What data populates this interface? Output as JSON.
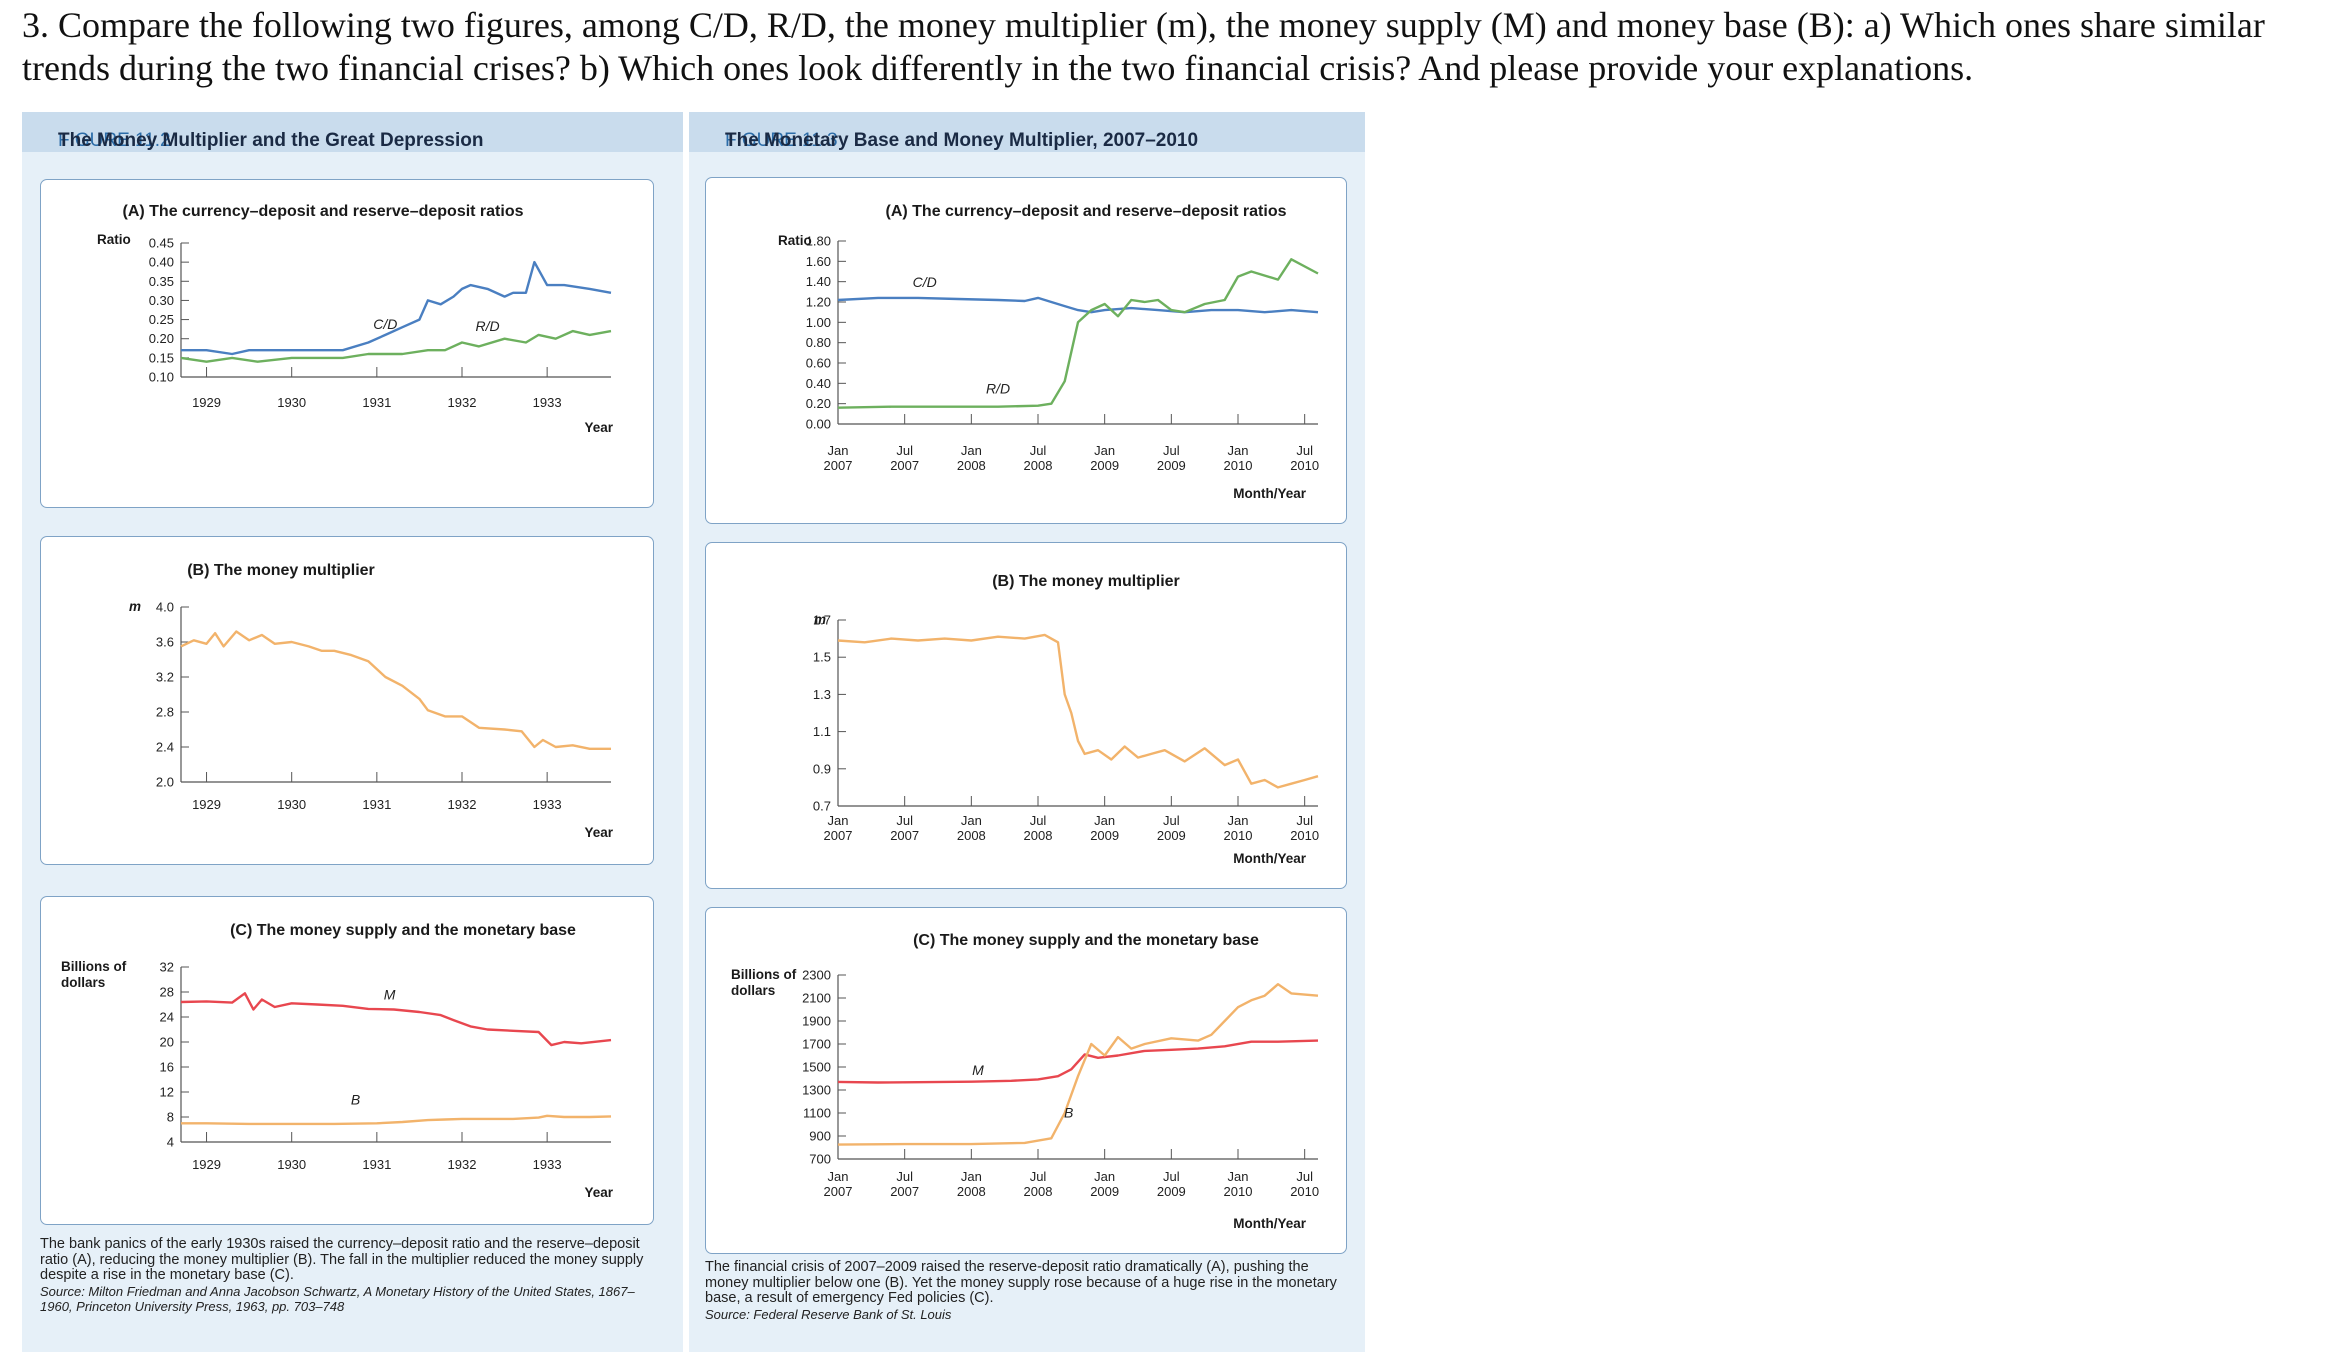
{
  "question": {
    "text": "3. Compare the following two figures, among C/D, R/D, the money multiplier (m), the money supply (M) and money base (B): a) Which ones share similar trends during the two financial crises? b) Which ones look differently in the two financial crisis? And please provide your explanations."
  },
  "figures": [
    {
      "number": "FIGURE 11.2",
      "title": "The Money Multiplier and the Great Depression",
      "caption": "The bank panics of the early 1930s raised the currency–deposit ratio and the reserve–deposit ratio (A), reducing the money multiplier (B). The fall in the multiplier reduced the money supply despite a rise in the monetary base (C).",
      "source": "Source: Milton Friedman and Anna Jacobson Schwartz, A Monetary History of the United States, 1867–1960, Princeton University Press, 1963, pp. 703–748"
    },
    {
      "number": "FIGURE 11.3",
      "title": "The Monetary Base and Money Multiplier, 2007–2010",
      "caption": "The financial crisis of 2007–2009 raised the reserve-deposit ratio dramatically (A), pushing the money multiplier below one (B). Yet the money supply rose because of a huge rise in the monetary base, a result of emergency Fed policies (C).",
      "source": "Source: Federal Reserve Bank of St. Louis"
    }
  ],
  "colors": {
    "blue": "#4a7fc1",
    "green": "#6db05e",
    "orange": "#f2b36b",
    "red": "#e8474f"
  },
  "chart_data": [
    {
      "id": "f1a",
      "type": "line",
      "figure": 1,
      "title": "(A) The currency–deposit and reserve–deposit ratios",
      "ylabel": "Ratio",
      "xlabel": "Year",
      "ylim": [
        0.1,
        0.45
      ],
      "yticks": [
        0.1,
        0.15,
        0.2,
        0.25,
        0.3,
        0.35,
        0.4,
        0.45
      ],
      "ytick_labels": [
        "0.10",
        "0.15",
        "0.20",
        "0.25",
        "0.30",
        "0.35",
        "0.40",
        "0.45"
      ],
      "xlim": [
        1928.7,
        1933.75
      ],
      "xticks": [
        1929,
        1930,
        1931,
        1932,
        1933
      ],
      "xtick_labels": [
        "1929",
        "1930",
        "1931",
        "1932",
        "1933"
      ],
      "series": [
        {
          "name": "C/D",
          "color": "blue",
          "x": [
            1928.7,
            1929,
            1929.3,
            1929.5,
            1929.8,
            1930,
            1930.3,
            1930.6,
            1930.9,
            1931.1,
            1931.3,
            1931.5,
            1931.6,
            1931.75,
            1931.9,
            1932,
            1932.1,
            1932.3,
            1932.5,
            1932.6,
            1932.75,
            1932.85,
            1933,
            1933.2,
            1933.5,
            1933.75
          ],
          "y": [
            0.17,
            0.17,
            0.16,
            0.17,
            0.17,
            0.17,
            0.17,
            0.17,
            0.19,
            0.21,
            0.23,
            0.25,
            0.3,
            0.29,
            0.31,
            0.33,
            0.34,
            0.33,
            0.31,
            0.32,
            0.32,
            0.4,
            0.34,
            0.34,
            0.33,
            0.32
          ]
        },
        {
          "name": "R/D",
          "color": "green",
          "x": [
            1928.7,
            1929,
            1929.3,
            1929.6,
            1930,
            1930.3,
            1930.6,
            1930.9,
            1931.1,
            1931.3,
            1931.6,
            1931.8,
            1932,
            1932.2,
            1932.5,
            1932.75,
            1932.9,
            1933.1,
            1933.3,
            1933.5,
            1933.75
          ],
          "y": [
            0.15,
            0.14,
            0.15,
            0.14,
            0.15,
            0.15,
            0.15,
            0.16,
            0.16,
            0.16,
            0.17,
            0.17,
            0.19,
            0.18,
            0.2,
            0.19,
            0.21,
            0.2,
            0.22,
            0.21,
            0.22
          ]
        }
      ],
      "annotations": [
        {
          "text": "C/D",
          "x": 1931.1,
          "y": 0.225
        },
        {
          "text": "R/D",
          "x": 1932.3,
          "y": 0.22
        }
      ]
    },
    {
      "id": "f1b",
      "type": "line",
      "figure": 1,
      "title": "(B) The money multiplier",
      "ylabel": "m",
      "xlabel": "Year",
      "ylim": [
        2.0,
        4.0
      ],
      "yticks": [
        2.0,
        2.4,
        2.8,
        3.2,
        3.6,
        4.0
      ],
      "ytick_labels": [
        "2.0",
        "2.4",
        "2.8",
        "3.2",
        "3.6",
        "4.0"
      ],
      "xlim": [
        1928.7,
        1933.75
      ],
      "xticks": [
        1929,
        1930,
        1931,
        1932,
        1933
      ],
      "xtick_labels": [
        "1929",
        "1930",
        "1931",
        "1932",
        "1933"
      ],
      "series": [
        {
          "name": "m",
          "color": "orange",
          "x": [
            1928.7,
            1928.85,
            1929,
            1929.1,
            1929.2,
            1929.35,
            1929.5,
            1929.65,
            1929.8,
            1930,
            1930.2,
            1930.35,
            1930.5,
            1930.7,
            1930.9,
            1931.1,
            1931.3,
            1931.5,
            1931.6,
            1931.8,
            1932,
            1932.2,
            1932.5,
            1932.7,
            1932.85,
            1932.95,
            1933.1,
            1933.3,
            1933.5,
            1933.75
          ],
          "y": [
            3.55,
            3.62,
            3.58,
            3.7,
            3.55,
            3.72,
            3.62,
            3.68,
            3.58,
            3.6,
            3.55,
            3.5,
            3.5,
            3.45,
            3.38,
            3.2,
            3.1,
            2.95,
            2.82,
            2.75,
            2.75,
            2.62,
            2.6,
            2.58,
            2.4,
            2.48,
            2.4,
            2.42,
            2.38,
            2.38
          ]
        }
      ]
    },
    {
      "id": "f1c",
      "type": "line",
      "figure": 1,
      "title": "(C) The money supply and the monetary base",
      "ylabel": "Billions of dollars",
      "xlabel": "Year",
      "ylim": [
        4,
        32
      ],
      "yticks": [
        4,
        8,
        12,
        16,
        20,
        24,
        28,
        32
      ],
      "ytick_labels": [
        "4",
        "8",
        "12",
        "16",
        "20",
        "24",
        "28",
        "32"
      ],
      "xlim": [
        1928.7,
        1933.75
      ],
      "xticks": [
        1929,
        1930,
        1931,
        1932,
        1933
      ],
      "xtick_labels": [
        "1929",
        "1930",
        "1931",
        "1932",
        "1933"
      ],
      "series": [
        {
          "name": "M",
          "color": "red",
          "x": [
            1928.7,
            1929,
            1929.3,
            1929.45,
            1929.55,
            1929.65,
            1929.8,
            1930,
            1930.3,
            1930.6,
            1930.9,
            1931.2,
            1931.5,
            1931.75,
            1931.9,
            1932.1,
            1932.3,
            1932.6,
            1932.9,
            1933.05,
            1933.2,
            1933.4,
            1933.75
          ],
          "y": [
            26.4,
            26.5,
            26.3,
            27.8,
            25.2,
            26.8,
            25.6,
            26.2,
            26.0,
            25.8,
            25.3,
            25.2,
            24.8,
            24.3,
            23.5,
            22.5,
            22.0,
            21.8,
            21.6,
            19.5,
            20.0,
            19.8,
            20.3
          ]
        },
        {
          "name": "B",
          "color": "orange",
          "x": [
            1928.7,
            1929,
            1929.5,
            1930,
            1930.5,
            1931,
            1931.3,
            1931.6,
            1931.8,
            1932,
            1932.3,
            1932.6,
            1932.9,
            1933.0,
            1933.2,
            1933.5,
            1933.75
          ],
          "y": [
            7.0,
            7.0,
            6.9,
            6.9,
            6.9,
            7.0,
            7.2,
            7.5,
            7.6,
            7.7,
            7.7,
            7.7,
            7.9,
            8.2,
            8.0,
            8.0,
            8.1
          ]
        }
      ],
      "annotations": [
        {
          "text": "M",
          "x": 1931.15,
          "y": 26.8
        },
        {
          "text": "B",
          "x": 1930.75,
          "y": 10.0
        }
      ]
    },
    {
      "id": "f2a",
      "type": "line",
      "figure": 2,
      "title": "(A) The currency–deposit and reserve–deposit ratios",
      "ylabel": "Ratio",
      "xlabel": "Month/Year",
      "ylim": [
        0.0,
        1.8
      ],
      "yticks": [
        0.0,
        0.2,
        0.4,
        0.6,
        0.8,
        1.0,
        1.2,
        1.4,
        1.6,
        1.8
      ],
      "ytick_labels": [
        "0.00",
        "0.20",
        "0.40",
        "0.60",
        "0.80",
        "1.00",
        "1.20",
        "1.40",
        "1.60",
        "1.80"
      ],
      "xlim": [
        2007.0,
        2010.6
      ],
      "xticks": [
        2007.0,
        2007.5,
        2008.0,
        2008.5,
        2009.0,
        2009.5,
        2010.0,
        2010.5
      ],
      "xtick_labels": [
        "Jan\n2007",
        "Jul\n2007",
        "Jan\n2008",
        "Jul\n2008",
        "Jan\n2009",
        "Jul\n2009",
        "Jan\n2010",
        "Jul\n2010"
      ],
      "series": [
        {
          "name": "C/D",
          "color": "blue",
          "x": [
            2007.0,
            2007.3,
            2007.6,
            2007.9,
            2008.2,
            2008.4,
            2008.5,
            2008.6,
            2008.7,
            2008.8,
            2008.9,
            2009.0,
            2009.2,
            2009.4,
            2009.6,
            2009.8,
            2010.0,
            2010.2,
            2010.4,
            2010.6
          ],
          "y": [
            1.22,
            1.24,
            1.24,
            1.23,
            1.22,
            1.21,
            1.24,
            1.2,
            1.16,
            1.12,
            1.1,
            1.12,
            1.14,
            1.12,
            1.1,
            1.12,
            1.12,
            1.1,
            1.12,
            1.1
          ]
        },
        {
          "name": "R/D",
          "color": "green",
          "x": [
            2007.0,
            2007.4,
            2007.8,
            2008.2,
            2008.5,
            2008.6,
            2008.7,
            2008.8,
            2008.9,
            2009.0,
            2009.1,
            2009.2,
            2009.3,
            2009.4,
            2009.5,
            2009.6,
            2009.75,
            2009.9,
            2010.0,
            2010.1,
            2010.3,
            2010.4,
            2010.6
          ],
          "y": [
            0.16,
            0.17,
            0.17,
            0.17,
            0.18,
            0.2,
            0.42,
            1.0,
            1.12,
            1.18,
            1.06,
            1.22,
            1.2,
            1.22,
            1.12,
            1.1,
            1.18,
            1.22,
            1.45,
            1.5,
            1.42,
            1.62,
            1.48
          ]
        }
      ],
      "annotations": [
        {
          "text": "C/D",
          "x": 2007.65,
          "y": 1.35
        },
        {
          "text": "R/D",
          "x": 2008.2,
          "y": 0.3
        }
      ]
    },
    {
      "id": "f2b",
      "type": "line",
      "figure": 2,
      "title": "(B) The money multiplier",
      "ylabel": "m",
      "xlabel": "Month/Year",
      "ylim": [
        0.7,
        1.7
      ],
      "yticks": [
        0.7,
        0.9,
        1.1,
        1.3,
        1.5,
        1.7
      ],
      "ytick_labels": [
        "0.7",
        "0.9",
        "1.1",
        "1.3",
        "1.5",
        "1.7"
      ],
      "xlim": [
        2007.0,
        2010.6
      ],
      "xticks": [
        2007.0,
        2007.5,
        2008.0,
        2008.5,
        2009.0,
        2009.5,
        2010.0,
        2010.5
      ],
      "xtick_labels": [
        "Jan\n2007",
        "Jul\n2007",
        "Jan\n2008",
        "Jul\n2008",
        "Jan\n2009",
        "Jul\n2009",
        "Jan\n2010",
        "Jul\n2010"
      ],
      "series": [
        {
          "name": "m",
          "color": "orange",
          "x": [
            2007.0,
            2007.2,
            2007.4,
            2007.6,
            2007.8,
            2008.0,
            2008.2,
            2008.4,
            2008.55,
            2008.65,
            2008.7,
            2008.75,
            2008.8,
            2008.85,
            2008.95,
            2009.05,
            2009.15,
            2009.25,
            2009.35,
            2009.45,
            2009.6,
            2009.75,
            2009.9,
            2010.0,
            2010.1,
            2010.2,
            2010.3,
            2010.4,
            2010.5,
            2010.6
          ],
          "y": [
            1.59,
            1.58,
            1.6,
            1.59,
            1.6,
            1.59,
            1.61,
            1.6,
            1.62,
            1.58,
            1.3,
            1.2,
            1.05,
            0.98,
            1.0,
            0.95,
            1.02,
            0.96,
            0.98,
            1.0,
            0.94,
            1.01,
            0.92,
            0.95,
            0.82,
            0.84,
            0.8,
            0.82,
            0.84,
            0.86
          ]
        }
      ]
    },
    {
      "id": "f2c",
      "type": "line",
      "figure": 2,
      "title": "(C) The money supply and the monetary base",
      "ylabel": "Billions of dollars",
      "xlabel": "Month/Year",
      "ylim": [
        700,
        2300
      ],
      "yticks": [
        700,
        900,
        1100,
        1300,
        1500,
        1700,
        1900,
        2100,
        2300
      ],
      "ytick_labels": [
        "700",
        "900",
        "1100",
        "1300",
        "1500",
        "1700",
        "1900",
        "2100",
        "2300"
      ],
      "xlim": [
        2007.0,
        2010.6
      ],
      "xticks": [
        2007.0,
        2007.5,
        2008.0,
        2008.5,
        2009.0,
        2009.5,
        2010.0,
        2010.5
      ],
      "xtick_labels": [
        "Jan\n2007",
        "Jul\n2007",
        "Jan\n2008",
        "Jul\n2008",
        "Jan\n2009",
        "Jul\n2009",
        "Jan\n2010",
        "Jul\n2010"
      ],
      "series": [
        {
          "name": "M",
          "color": "red",
          "x": [
            2007.0,
            2007.3,
            2007.6,
            2008.0,
            2008.3,
            2008.5,
            2008.65,
            2008.75,
            2008.85,
            2008.95,
            2009.1,
            2009.3,
            2009.5,
            2009.7,
            2009.9,
            2010.1,
            2010.3,
            2010.6
          ],
          "y": [
            1370,
            1365,
            1368,
            1372,
            1380,
            1392,
            1420,
            1480,
            1610,
            1580,
            1600,
            1640,
            1650,
            1660,
            1680,
            1720,
            1720,
            1730
          ]
        },
        {
          "name": "B",
          "color": "orange",
          "x": [
            2007.0,
            2007.5,
            2008.0,
            2008.4,
            2008.6,
            2008.7,
            2008.8,
            2008.9,
            2009.0,
            2009.1,
            2009.2,
            2009.3,
            2009.5,
            2009.6,
            2009.7,
            2009.8,
            2009.9,
            2010.0,
            2010.1,
            2010.2,
            2010.3,
            2010.4,
            2010.6
          ],
          "y": [
            825,
            830,
            830,
            840,
            880,
            1100,
            1420,
            1700,
            1600,
            1760,
            1660,
            1700,
            1750,
            1740,
            1730,
            1780,
            1900,
            2020,
            2080,
            2120,
            2220,
            2140,
            2120
          ]
        }
      ],
      "annotations": [
        {
          "text": "M",
          "x": 2008.05,
          "y": 1430
        },
        {
          "text": "B",
          "x": 2008.73,
          "y": 1060
        }
      ]
    }
  ]
}
